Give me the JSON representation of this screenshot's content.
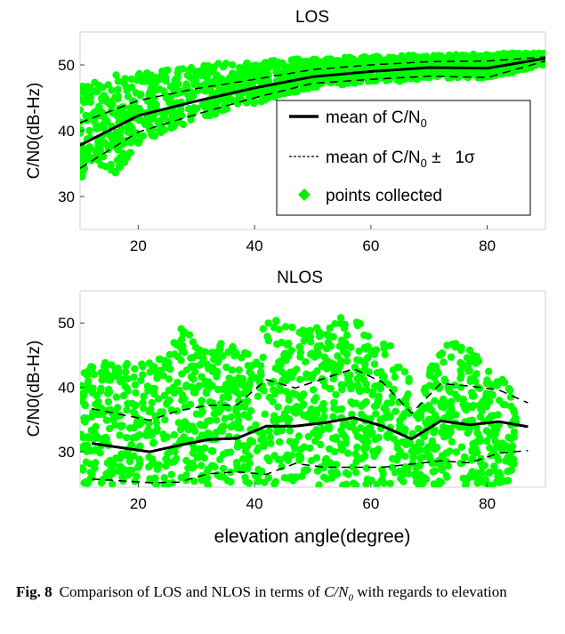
{
  "chart_data": [
    {
      "type": "scatter",
      "title": "LOS",
      "xlabel": "",
      "ylabel": "C/N0(dB-Hz)",
      "xlim": [
        10,
        90
      ],
      "ylim": [
        25,
        55
      ],
      "xticks": [
        20,
        40,
        60,
        80
      ],
      "yticks": [
        30,
        40,
        50
      ],
      "grid": false,
      "legend_position": "lower-right",
      "legend": [
        {
          "label_pre": "mean of C/N",
          "label_sub": "0",
          "label_post": "",
          "style": "solid"
        },
        {
          "label_pre": "mean of C/N",
          "label_sub": "0",
          "label_post": " ±   1σ",
          "style": "dashed"
        },
        {
          "label_pre": "points collected",
          "label_sub": "",
          "label_post": "",
          "style": "marker"
        }
      ],
      "series": [
        {
          "name": "mean of C/N0",
          "style": "solid",
          "x": [
            10,
            20,
            30,
            40,
            50,
            60,
            70,
            80,
            90
          ],
          "y": [
            37.8,
            42.3,
            44.5,
            46.5,
            48.2,
            49.0,
            49.6,
            49.5,
            51.0
          ]
        },
        {
          "name": "mean of C/N0 + 1σ",
          "style": "dashed",
          "x": [
            10,
            20,
            30,
            40,
            50,
            60,
            70,
            80,
            90
          ],
          "y": [
            41.2,
            44.6,
            46.4,
            47.8,
            49.3,
            50.0,
            50.5,
            50.6,
            51.2
          ]
        },
        {
          "name": "mean of C/N0 - 1σ",
          "style": "dashed",
          "x": [
            10,
            20,
            30,
            40,
            50,
            60,
            70,
            80,
            90
          ],
          "y": [
            34.3,
            39.8,
            42.5,
            45.0,
            47.2,
            47.8,
            48.3,
            48.1,
            50.6
          ]
        },
        {
          "name": "points collected",
          "style": "marker",
          "color": "#00ff00",
          "x": [
            10,
            12,
            14,
            16,
            20,
            25,
            30,
            35,
            40,
            45,
            50,
            55,
            60,
            65,
            70,
            75,
            80,
            85,
            90
          ],
          "y_min": [
            32.5,
            35.0,
            34.0,
            33.5,
            37.5,
            40.0,
            41.5,
            43.0,
            44.0,
            45.5,
            46.5,
            47.0,
            47.5,
            47.5,
            48.0,
            48.0,
            48.0,
            49.0,
            50.0
          ],
          "y_max": [
            47.0,
            48.0,
            48.5,
            48.5,
            49.0,
            49.5,
            50.0,
            50.3,
            50.5,
            50.8,
            51.0,
            51.2,
            51.3,
            51.5,
            51.5,
            51.6,
            51.7,
            51.8,
            51.8
          ]
        }
      ]
    },
    {
      "type": "scatter",
      "title": "NLOS",
      "xlabel": "elevation angle(degree)",
      "ylabel": "C/N0(dB-Hz)",
      "xlim": [
        10,
        90
      ],
      "ylim": [
        24.5,
        55
      ],
      "xticks": [
        20,
        40,
        60,
        80
      ],
      "yticks": [
        30,
        40,
        50
      ],
      "grid": false,
      "series": [
        {
          "name": "mean of C/N0",
          "style": "solid",
          "x": [
            12,
            22,
            27,
            32,
            37,
            42,
            47,
            52,
            57,
            62,
            67,
            72,
            77,
            82,
            87
          ],
          "y": [
            31.3,
            30.0,
            31.0,
            31.9,
            32.1,
            34.0,
            34.0,
            34.5,
            35.3,
            34.0,
            32.0,
            34.8,
            34.2,
            34.7,
            33.9
          ]
        },
        {
          "name": "mean of C/N0 + 1σ",
          "style": "dashed",
          "x": [
            12,
            22,
            27,
            32,
            37,
            42,
            47,
            52,
            57,
            62,
            67,
            72,
            77,
            82,
            87
          ],
          "y": [
            36.7,
            34.9,
            36.4,
            37.2,
            37.3,
            41.2,
            39.9,
            41.4,
            42.9,
            40.8,
            36.0,
            40.6,
            40.2,
            39.6,
            37.6
          ]
        },
        {
          "name": "mean of C/N0 - 1σ",
          "style": "dashed",
          "x": [
            12,
            22,
            27,
            32,
            37,
            42,
            47,
            52,
            57,
            62,
            67,
            72,
            77,
            82,
            87
          ],
          "y": [
            25.8,
            25.2,
            25.3,
            26.6,
            26.9,
            26.5,
            28.2,
            27.6,
            27.6,
            27.6,
            28.1,
            28.6,
            28.3,
            29.8,
            30.2
          ]
        },
        {
          "name": "points collected",
          "style": "marker",
          "color": "#00ff00",
          "x": [
            10,
            15,
            20,
            25,
            28,
            30,
            35,
            40,
            42,
            45,
            50,
            55,
            57,
            60,
            65,
            68,
            70,
            72,
            75,
            78,
            80,
            85
          ],
          "y_min": [
            24.8,
            24.8,
            24.8,
            24.8,
            24.8,
            24.8,
            24.8,
            24.8,
            24.8,
            24.8,
            24.8,
            24.8,
            24.8,
            24.8,
            24.8,
            24.8,
            24.8,
            24.8,
            24.8,
            24.8,
            24.8,
            24.8
          ],
          "y_max": [
            43.0,
            44.0,
            43.5,
            45.0,
            50.5,
            46.0,
            47.0,
            45.5,
            51.5,
            50.0,
            49.0,
            51.0,
            52.0,
            48.0,
            46.0,
            37.0,
            43.0,
            46.0,
            47.5,
            45.0,
            43.0,
            40.0
          ]
        }
      ]
    }
  ],
  "caption": {
    "label": "Fig. 8",
    "text_pre": "Comparison of LOS and NLOS in terms of ",
    "math_main": "C/N",
    "math_sub": "0",
    "text_post": " with regards to elevation"
  }
}
